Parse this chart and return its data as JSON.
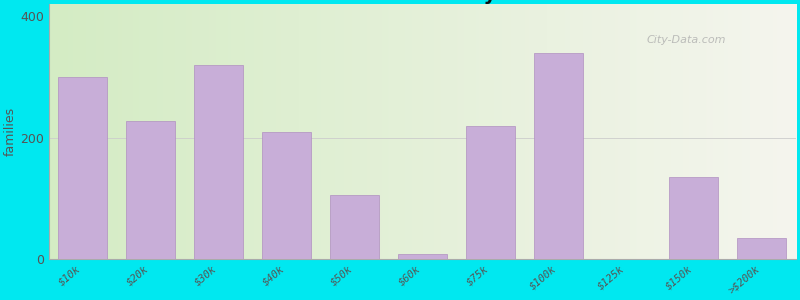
{
  "categories": [
    "$10k",
    "$20k",
    "$30k",
    "$40k",
    "$50k",
    "$60k",
    "$75k",
    "$100k",
    "$125k",
    "$150k",
    ">$200k"
  ],
  "values": [
    300,
    228,
    320,
    210,
    105,
    8,
    220,
    340,
    0,
    135,
    35
  ],
  "bar_color": "#c8aed8",
  "bar_edge_color": "#b090c0",
  "background_outer": "#00e8f0",
  "background_inner_left": "#d4ecc4",
  "background_inner_right": "#f5f5ee",
  "title_color": "#111111",
  "subtitle_color": "#007b8a",
  "ylabel": "families",
  "ylim": [
    0,
    420
  ],
  "yticks": [
    0,
    200,
    400
  ],
  "watermark": "City-Data.com",
  "title_fontsize": 14,
  "subtitle_fontsize": 10
}
